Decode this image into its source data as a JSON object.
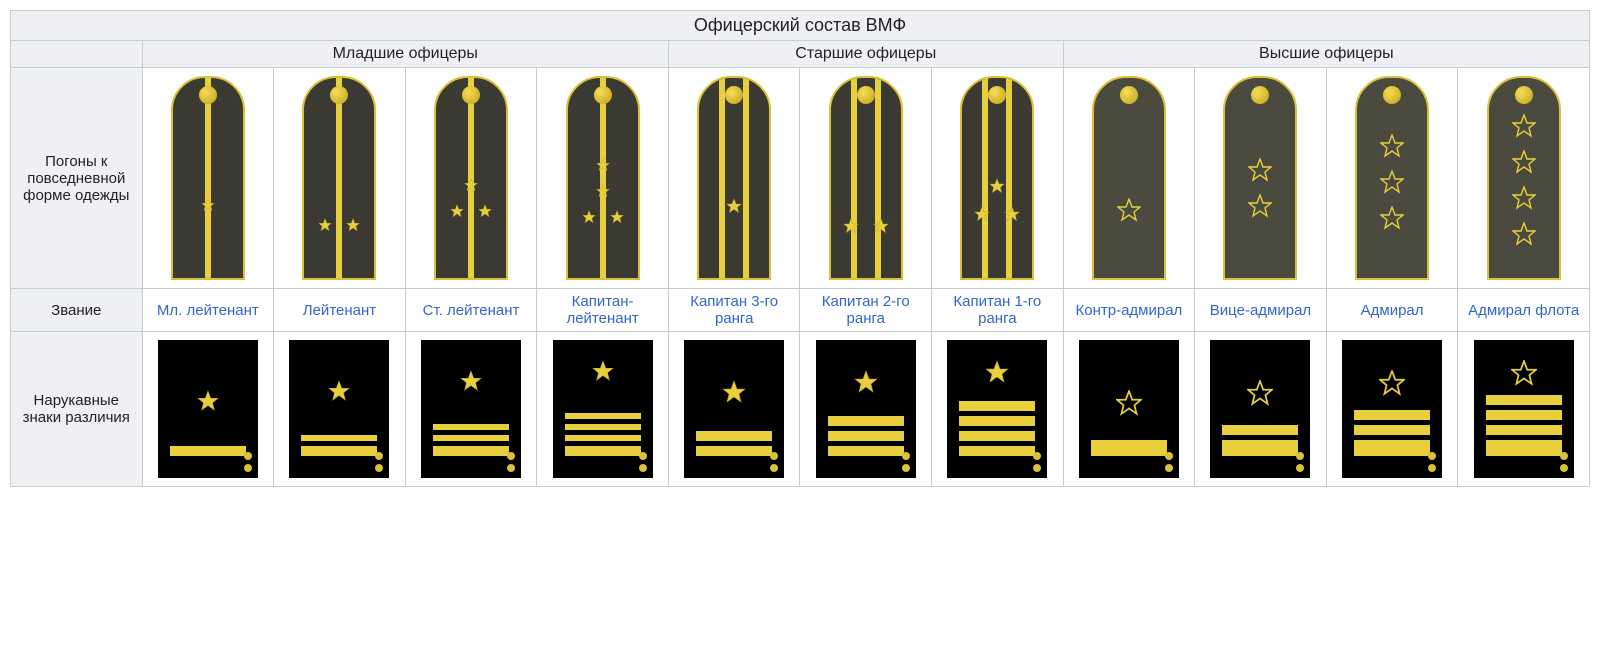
{
  "title": "Офицерский состав ВМФ",
  "groups": [
    {
      "label": "Младшие офицеры",
      "span": 4
    },
    {
      "label": "Старшие офицеры",
      "span": 3
    },
    {
      "label": "Высшие офицеры",
      "span": 4
    }
  ],
  "row_labels": {
    "epaulets": "Погоны к повседневной форме одежды",
    "rank": "Звание",
    "sleeve": "Нарукавные знаки различия"
  },
  "colors": {
    "gold": "#e7cf3e",
    "gold_dark": "#b4981a",
    "board_bg": "#3a3a33",
    "admiral_bg": "#4a4a3e",
    "sleeve_bg": "#000000",
    "link": "#3366cc",
    "header_bg": "#eef0f3",
    "border": "#c8ccd1"
  },
  "ranks": [
    {
      "name": "Мл. лейтенант",
      "epaulet": {
        "type": "junior",
        "stars": {
          "layout": "center",
          "count": 1,
          "size": 14
        }
      },
      "sleeve": {
        "star": {
          "type": "solid",
          "size": 22
        },
        "stripes": [
          "med"
        ]
      }
    },
    {
      "name": "Лейтенант",
      "epaulet": {
        "type": "junior",
        "stars": {
          "layout": "pair",
          "count": 2,
          "size": 14
        }
      },
      "sleeve": {
        "star": {
          "type": "solid",
          "size": 22
        },
        "stripes": [
          "thin",
          "med"
        ]
      }
    },
    {
      "name": "Ст. лейтенант",
      "epaulet": {
        "type": "junior",
        "stars": {
          "layout": "tri",
          "count": 3,
          "size": 14
        }
      },
      "sleeve": {
        "star": {
          "type": "solid",
          "size": 22
        },
        "stripes": [
          "thin",
          "thin",
          "med"
        ]
      }
    },
    {
      "name": "Капитан-лейтенант",
      "epaulet": {
        "type": "junior",
        "stars": {
          "layout": "quad",
          "count": 4,
          "size": 14
        }
      },
      "sleeve": {
        "star": {
          "type": "solid",
          "size": 22
        },
        "stripes": [
          "thin",
          "thin",
          "thin",
          "med"
        ]
      }
    },
    {
      "name": "Капитан 3-го ранга",
      "epaulet": {
        "type": "senior",
        "stars": {
          "layout": "center",
          "count": 1,
          "size": 16
        }
      },
      "sleeve": {
        "star": {
          "type": "solid",
          "size": 24
        },
        "stripes": [
          "med",
          "med"
        ]
      }
    },
    {
      "name": "Капитан 2-го ранга",
      "epaulet": {
        "type": "senior",
        "stars": {
          "layout": "pair",
          "count": 2,
          "size": 16
        }
      },
      "sleeve": {
        "star": {
          "type": "solid",
          "size": 24
        },
        "stripes": [
          "med",
          "med",
          "med"
        ]
      }
    },
    {
      "name": "Капитан 1-го ранга",
      "epaulet": {
        "type": "senior",
        "stars": {
          "layout": "tri",
          "count": 3,
          "size": 16
        }
      },
      "sleeve": {
        "star": {
          "type": "solid",
          "size": 24
        },
        "stripes": [
          "med",
          "med",
          "med",
          "med"
        ]
      }
    },
    {
      "name": "Контр-адмирал",
      "epaulet": {
        "type": "admiral",
        "stars": {
          "layout": "center",
          "count": 1,
          "size": 24
        }
      },
      "sleeve": {
        "star": {
          "type": "outline",
          "size": 26
        },
        "stripes": [
          "thick"
        ]
      }
    },
    {
      "name": "Вице-адмирал",
      "epaulet": {
        "type": "admiral",
        "stars": {
          "layout": "column",
          "count": 2,
          "size": 24
        }
      },
      "sleeve": {
        "star": {
          "type": "outline",
          "size": 26
        },
        "stripes": [
          "med",
          "thick"
        ]
      }
    },
    {
      "name": "Адмирал",
      "epaulet": {
        "type": "admiral",
        "stars": {
          "layout": "column",
          "count": 3,
          "size": 24
        }
      },
      "sleeve": {
        "star": {
          "type": "outline",
          "size": 26
        },
        "stripes": [
          "med",
          "med",
          "thick"
        ]
      }
    },
    {
      "name": "Адмирал флота",
      "epaulet": {
        "type": "admiral",
        "stars": {
          "layout": "column",
          "count": 4,
          "size": 24
        }
      },
      "sleeve": {
        "star": {
          "type": "outline",
          "size": 26
        },
        "stripes": [
          "med",
          "med",
          "med",
          "thick"
        ]
      }
    }
  ]
}
